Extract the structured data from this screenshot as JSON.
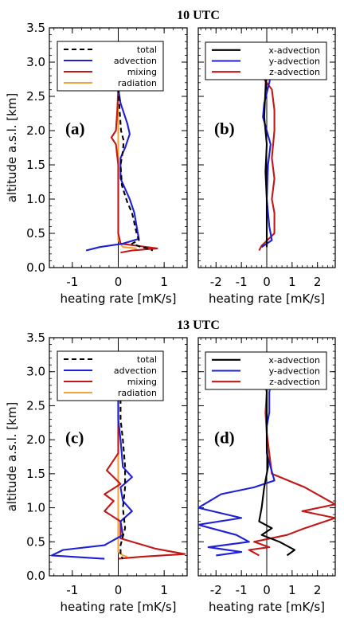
{
  "chart_data": [
    {
      "type": "line",
      "panel_label": "(a)",
      "title": "10 UTC",
      "xlabel": "heating rate [mK/s]",
      "ylabel": "altitude a.s.l. [km]",
      "xlim": [
        -1.5,
        1.5
      ],
      "ylim": [
        0.0,
        3.5
      ],
      "xticks": [
        -1,
        0,
        1
      ],
      "yticks": [
        0.0,
        0.5,
        1.0,
        1.5,
        2.0,
        2.5,
        3.0,
        3.5
      ],
      "legend_position": "top",
      "series": [
        {
          "name": "total",
          "color": "#000000",
          "dash": "6,4",
          "points": [
            [
              0.0,
              2.62
            ],
            [
              0.02,
              2.4
            ],
            [
              0.04,
              2.2
            ],
            [
              0.06,
              2.0
            ],
            [
              0.12,
              1.85
            ],
            [
              0.1,
              1.7
            ],
            [
              0.05,
              1.5
            ],
            [
              0.08,
              1.2
            ],
            [
              0.2,
              0.95
            ],
            [
              0.3,
              0.8
            ],
            [
              0.35,
              0.65
            ],
            [
              0.4,
              0.5
            ],
            [
              0.45,
              0.4
            ],
            [
              0.3,
              0.35
            ],
            [
              0.5,
              0.3
            ],
            [
              0.65,
              0.28
            ],
            [
              0.75,
              0.25
            ]
          ]
        },
        {
          "name": "advection",
          "color": "#1f1fd6",
          "dash": "",
          "points": [
            [
              0.0,
              2.62
            ],
            [
              0.05,
              2.4
            ],
            [
              0.2,
              2.1
            ],
            [
              0.25,
              1.95
            ],
            [
              0.15,
              1.75
            ],
            [
              0.05,
              1.6
            ],
            [
              0.05,
              1.3
            ],
            [
              0.25,
              1.0
            ],
            [
              0.35,
              0.8
            ],
            [
              0.4,
              0.6
            ],
            [
              0.45,
              0.42
            ],
            [
              0.1,
              0.35
            ],
            [
              -0.4,
              0.3
            ],
            [
              -0.7,
              0.25
            ]
          ]
        },
        {
          "name": "mixing",
          "color": "#c01818",
          "dash": "",
          "points": [
            [
              0.0,
              2.62
            ],
            [
              -0.02,
              2.3
            ],
            [
              -0.05,
              2.0
            ],
            [
              -0.15,
              1.9
            ],
            [
              -0.05,
              1.8
            ],
            [
              0.0,
              1.5
            ],
            [
              0.0,
              1.0
            ],
            [
              0.0,
              0.5
            ],
            [
              0.05,
              0.35
            ],
            [
              0.4,
              0.32
            ],
            [
              0.85,
              0.28
            ],
            [
              0.3,
              0.25
            ],
            [
              0.05,
              0.22
            ]
          ]
        },
        {
          "name": "radiation",
          "color": "#f2a23a",
          "dash": "",
          "points": [
            [
              0.0,
              2.62
            ],
            [
              0.0,
              0.4
            ],
            [
              0.05,
              0.35
            ],
            [
              0.1,
              0.3
            ],
            [
              0.4,
              0.28
            ]
          ]
        }
      ]
    },
    {
      "type": "line",
      "panel_label": "(b)",
      "title": "",
      "xlabel": "heating rate [mK/s]",
      "ylabel": "",
      "xlim": [
        -2.7,
        2.7
      ],
      "ylim": [
        0.0,
        3.5
      ],
      "xticks": [
        -2,
        -1,
        0,
        1,
        2
      ],
      "yticks": [
        0.0,
        0.5,
        1.0,
        1.5,
        2.0,
        2.5,
        3.0,
        3.5
      ],
      "legend_position": "top",
      "series": [
        {
          "name": "x-advection",
          "color": "#000000",
          "dash": "",
          "points": [
            [
              0.0,
              3.1
            ],
            [
              -0.05,
              2.6
            ],
            [
              -0.1,
              2.2
            ],
            [
              0.0,
              1.8
            ],
            [
              -0.05,
              1.4
            ],
            [
              0.0,
              1.0
            ],
            [
              0.0,
              0.6
            ],
            [
              0.0,
              0.3
            ]
          ]
        },
        {
          "name": "y-advection",
          "color": "#1f1fd6",
          "dash": "",
          "points": [
            [
              0.3,
              3.1
            ],
            [
              0.1,
              2.7
            ],
            [
              -0.1,
              2.4
            ],
            [
              -0.15,
              2.2
            ],
            [
              0.15,
              1.8
            ],
            [
              0.05,
              1.5
            ],
            [
              0.0,
              1.0
            ],
            [
              0.1,
              0.6
            ],
            [
              0.2,
              0.4
            ],
            [
              -0.2,
              0.3
            ]
          ]
        },
        {
          "name": "z-advection",
          "color": "#c01818",
          "dash": "",
          "points": [
            [
              -0.3,
              3.1
            ],
            [
              -0.2,
              2.8
            ],
            [
              0.2,
              2.6
            ],
            [
              0.3,
              2.3
            ],
            [
              0.3,
              2.0
            ],
            [
              0.2,
              1.6
            ],
            [
              0.3,
              1.3
            ],
            [
              0.2,
              1.0
            ],
            [
              0.3,
              0.8
            ],
            [
              0.3,
              0.5
            ],
            [
              -0.2,
              0.32
            ],
            [
              -0.3,
              0.25
            ]
          ]
        }
      ]
    },
    {
      "type": "line",
      "panel_label": "(c)",
      "title": "13 UTC",
      "xlabel": "heating rate [mK/s]",
      "ylabel": "altitude a.s.l. [km]",
      "xlim": [
        -1.5,
        1.5
      ],
      "ylim": [
        0.0,
        3.5
      ],
      "xticks": [
        -1,
        0,
        1
      ],
      "yticks": [
        0.0,
        0.5,
        1.0,
        1.5,
        2.0,
        2.5,
        3.0,
        3.5
      ],
      "legend_position": "top",
      "series": [
        {
          "name": "total",
          "color": "#000000",
          "dash": "6,4",
          "points": [
            [
              0.05,
              2.6
            ],
            [
              0.05,
              2.3
            ],
            [
              0.1,
              2.0
            ],
            [
              0.15,
              1.6
            ],
            [
              0.15,
              1.3
            ],
            [
              0.1,
              1.0
            ],
            [
              0.15,
              0.7
            ],
            [
              0.05,
              0.45
            ],
            [
              0.05,
              0.3
            ],
            [
              0.1,
              0.25
            ]
          ]
        },
        {
          "name": "advection",
          "color": "#1f1fd6",
          "dash": "",
          "points": [
            [
              0.0,
              2.6
            ],
            [
              0.0,
              2.3
            ],
            [
              0.05,
              2.0
            ],
            [
              0.1,
              1.6
            ],
            [
              0.3,
              1.45
            ],
            [
              0.05,
              1.3
            ],
            [
              0.1,
              1.1
            ],
            [
              0.3,
              0.95
            ],
            [
              0.05,
              0.8
            ],
            [
              0.1,
              0.6
            ],
            [
              -0.3,
              0.45
            ],
            [
              -1.2,
              0.38
            ],
            [
              -1.45,
              0.3
            ],
            [
              -0.3,
              0.25
            ]
          ]
        },
        {
          "name": "mixing",
          "color": "#c01818",
          "dash": "",
          "points": [
            [
              0.0,
              2.6
            ],
            [
              0.0,
              2.3
            ],
            [
              0.0,
              1.8
            ],
            [
              -0.25,
              1.55
            ],
            [
              0.05,
              1.35
            ],
            [
              -0.3,
              1.2
            ],
            [
              -0.1,
              1.1
            ],
            [
              -0.3,
              0.95
            ],
            [
              0.05,
              0.8
            ],
            [
              0.05,
              0.55
            ],
            [
              0.8,
              0.4
            ],
            [
              1.45,
              0.32
            ],
            [
              0.5,
              0.28
            ],
            [
              0.0,
              0.25
            ]
          ]
        },
        {
          "name": "radiation",
          "color": "#f2a23a",
          "dash": "",
          "points": [
            [
              0.0,
              2.6
            ],
            [
              0.0,
              0.35
            ],
            [
              0.1,
              0.3
            ],
            [
              0.2,
              0.28
            ]
          ]
        }
      ]
    },
    {
      "type": "line",
      "panel_label": "(d)",
      "title": "",
      "xlabel": "heating rate [mK/s]",
      "ylabel": "",
      "xlim": [
        -2.7,
        2.7
      ],
      "ylim": [
        0.0,
        3.5
      ],
      "xticks": [
        -2,
        -1,
        0,
        1,
        2
      ],
      "yticks": [
        0.0,
        0.5,
        1.0,
        1.5,
        2.0,
        2.5,
        3.0,
        3.5
      ],
      "legend_position": "top",
      "series": [
        {
          "name": "x-advection",
          "color": "#000000",
          "dash": "",
          "points": [
            [
              0.0,
              3.1
            ],
            [
              0.0,
              2.6
            ],
            [
              0.0,
              2.2
            ],
            [
              0.0,
              1.9
            ],
            [
              0.05,
              1.6
            ],
            [
              -0.1,
              1.3
            ],
            [
              -0.2,
              1.0
            ],
            [
              -0.3,
              0.8
            ],
            [
              0.2,
              0.7
            ],
            [
              -0.2,
              0.6
            ],
            [
              0.5,
              0.5
            ],
            [
              1.1,
              0.38
            ],
            [
              0.8,
              0.3
            ]
          ]
        },
        {
          "name": "y-advection",
          "color": "#1f1fd6",
          "dash": "",
          "points": [
            [
              0.3,
              3.1
            ],
            [
              0.1,
              2.7
            ],
            [
              0.1,
              2.4
            ],
            [
              0.0,
              2.2
            ],
            [
              0.0,
              1.8
            ],
            [
              0.3,
              1.4
            ],
            [
              -0.5,
              1.3
            ],
            [
              -1.8,
              1.2
            ],
            [
              -2.7,
              1.0
            ],
            [
              -1.0,
              0.85
            ],
            [
              -2.7,
              0.75
            ],
            [
              -1.2,
              0.6
            ],
            [
              -0.7,
              0.5
            ],
            [
              -2.3,
              0.42
            ],
            [
              -1.0,
              0.35
            ],
            [
              -2.0,
              0.3
            ]
          ]
        },
        {
          "name": "z-advection",
          "color": "#c01818",
          "dash": "",
          "points": [
            [
              -0.3,
              3.1
            ],
            [
              0.0,
              2.7
            ],
            [
              -0.05,
              2.4
            ],
            [
              0.0,
              2.1
            ],
            [
              0.1,
              1.8
            ],
            [
              0.2,
              1.5
            ],
            [
              1.5,
              1.3
            ],
            [
              2.7,
              1.05
            ],
            [
              1.4,
              0.95
            ],
            [
              2.7,
              0.85
            ],
            [
              1.5,
              0.7
            ],
            [
              0.8,
              0.6
            ],
            [
              -0.5,
              0.5
            ],
            [
              0.1,
              0.42
            ],
            [
              -0.7,
              0.38
            ],
            [
              -0.3,
              0.3
            ]
          ]
        }
      ]
    }
  ]
}
